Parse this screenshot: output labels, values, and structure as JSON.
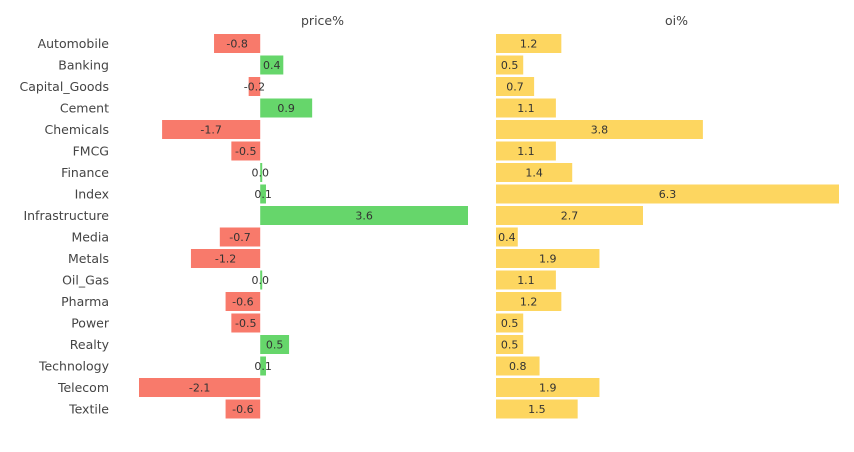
{
  "chart_data": {
    "type": "bar",
    "orientation": "horizontal",
    "categories": [
      "Automobile",
      "Banking",
      "Capital_Goods",
      "Cement",
      "Chemicals",
      "FMCG",
      "Finance",
      "Index",
      "Infrastructure",
      "Media",
      "Metals",
      "Oil_Gas",
      "Pharma",
      "Power",
      "Realty",
      "Technology",
      "Telecom",
      "Textile"
    ],
    "panels": [
      {
        "title": "price%",
        "values": [
          -0.8,
          0.4,
          -0.2,
          0.9,
          -1.7,
          -0.5,
          0.0,
          0.1,
          3.6,
          -0.7,
          -1.2,
          0.0,
          -0.6,
          -0.5,
          0.5,
          0.1,
          -2.1,
          -0.6
        ],
        "labels": [
          "-0.8",
          "0.4",
          "-0.2",
          "0.9",
          "-1.7",
          "-0.5",
          "0.0",
          "0.1",
          "3.6",
          "-0.7",
          "-1.2",
          "0.0",
          "-0.6",
          "-0.5",
          "0.5",
          "0.1",
          "-2.1",
          "-0.6"
        ],
        "xlim": [
          -2.1,
          3.6
        ],
        "positive_color": "#66d66b",
        "negative_color": "#f87a6b"
      },
      {
        "title": "oi%",
        "values": [
          1.2,
          0.5,
          0.7,
          1.1,
          3.8,
          1.1,
          1.4,
          6.3,
          2.7,
          0.4,
          1.9,
          1.1,
          1.2,
          0.5,
          0.5,
          0.8,
          1.9,
          1.5
        ],
        "labels": [
          "1.2",
          "0.5",
          "0.7",
          "1.1",
          "3.8",
          "1.1",
          "1.4",
          "6.3",
          "2.7",
          "0.4",
          "1.9",
          "1.1",
          "1.2",
          "0.5",
          "0.5",
          "0.8",
          "1.9",
          "1.5"
        ],
        "xlim": [
          0,
          6.3
        ],
        "color": "#fdd660"
      }
    ],
    "grid": false,
    "legend": "none"
  }
}
